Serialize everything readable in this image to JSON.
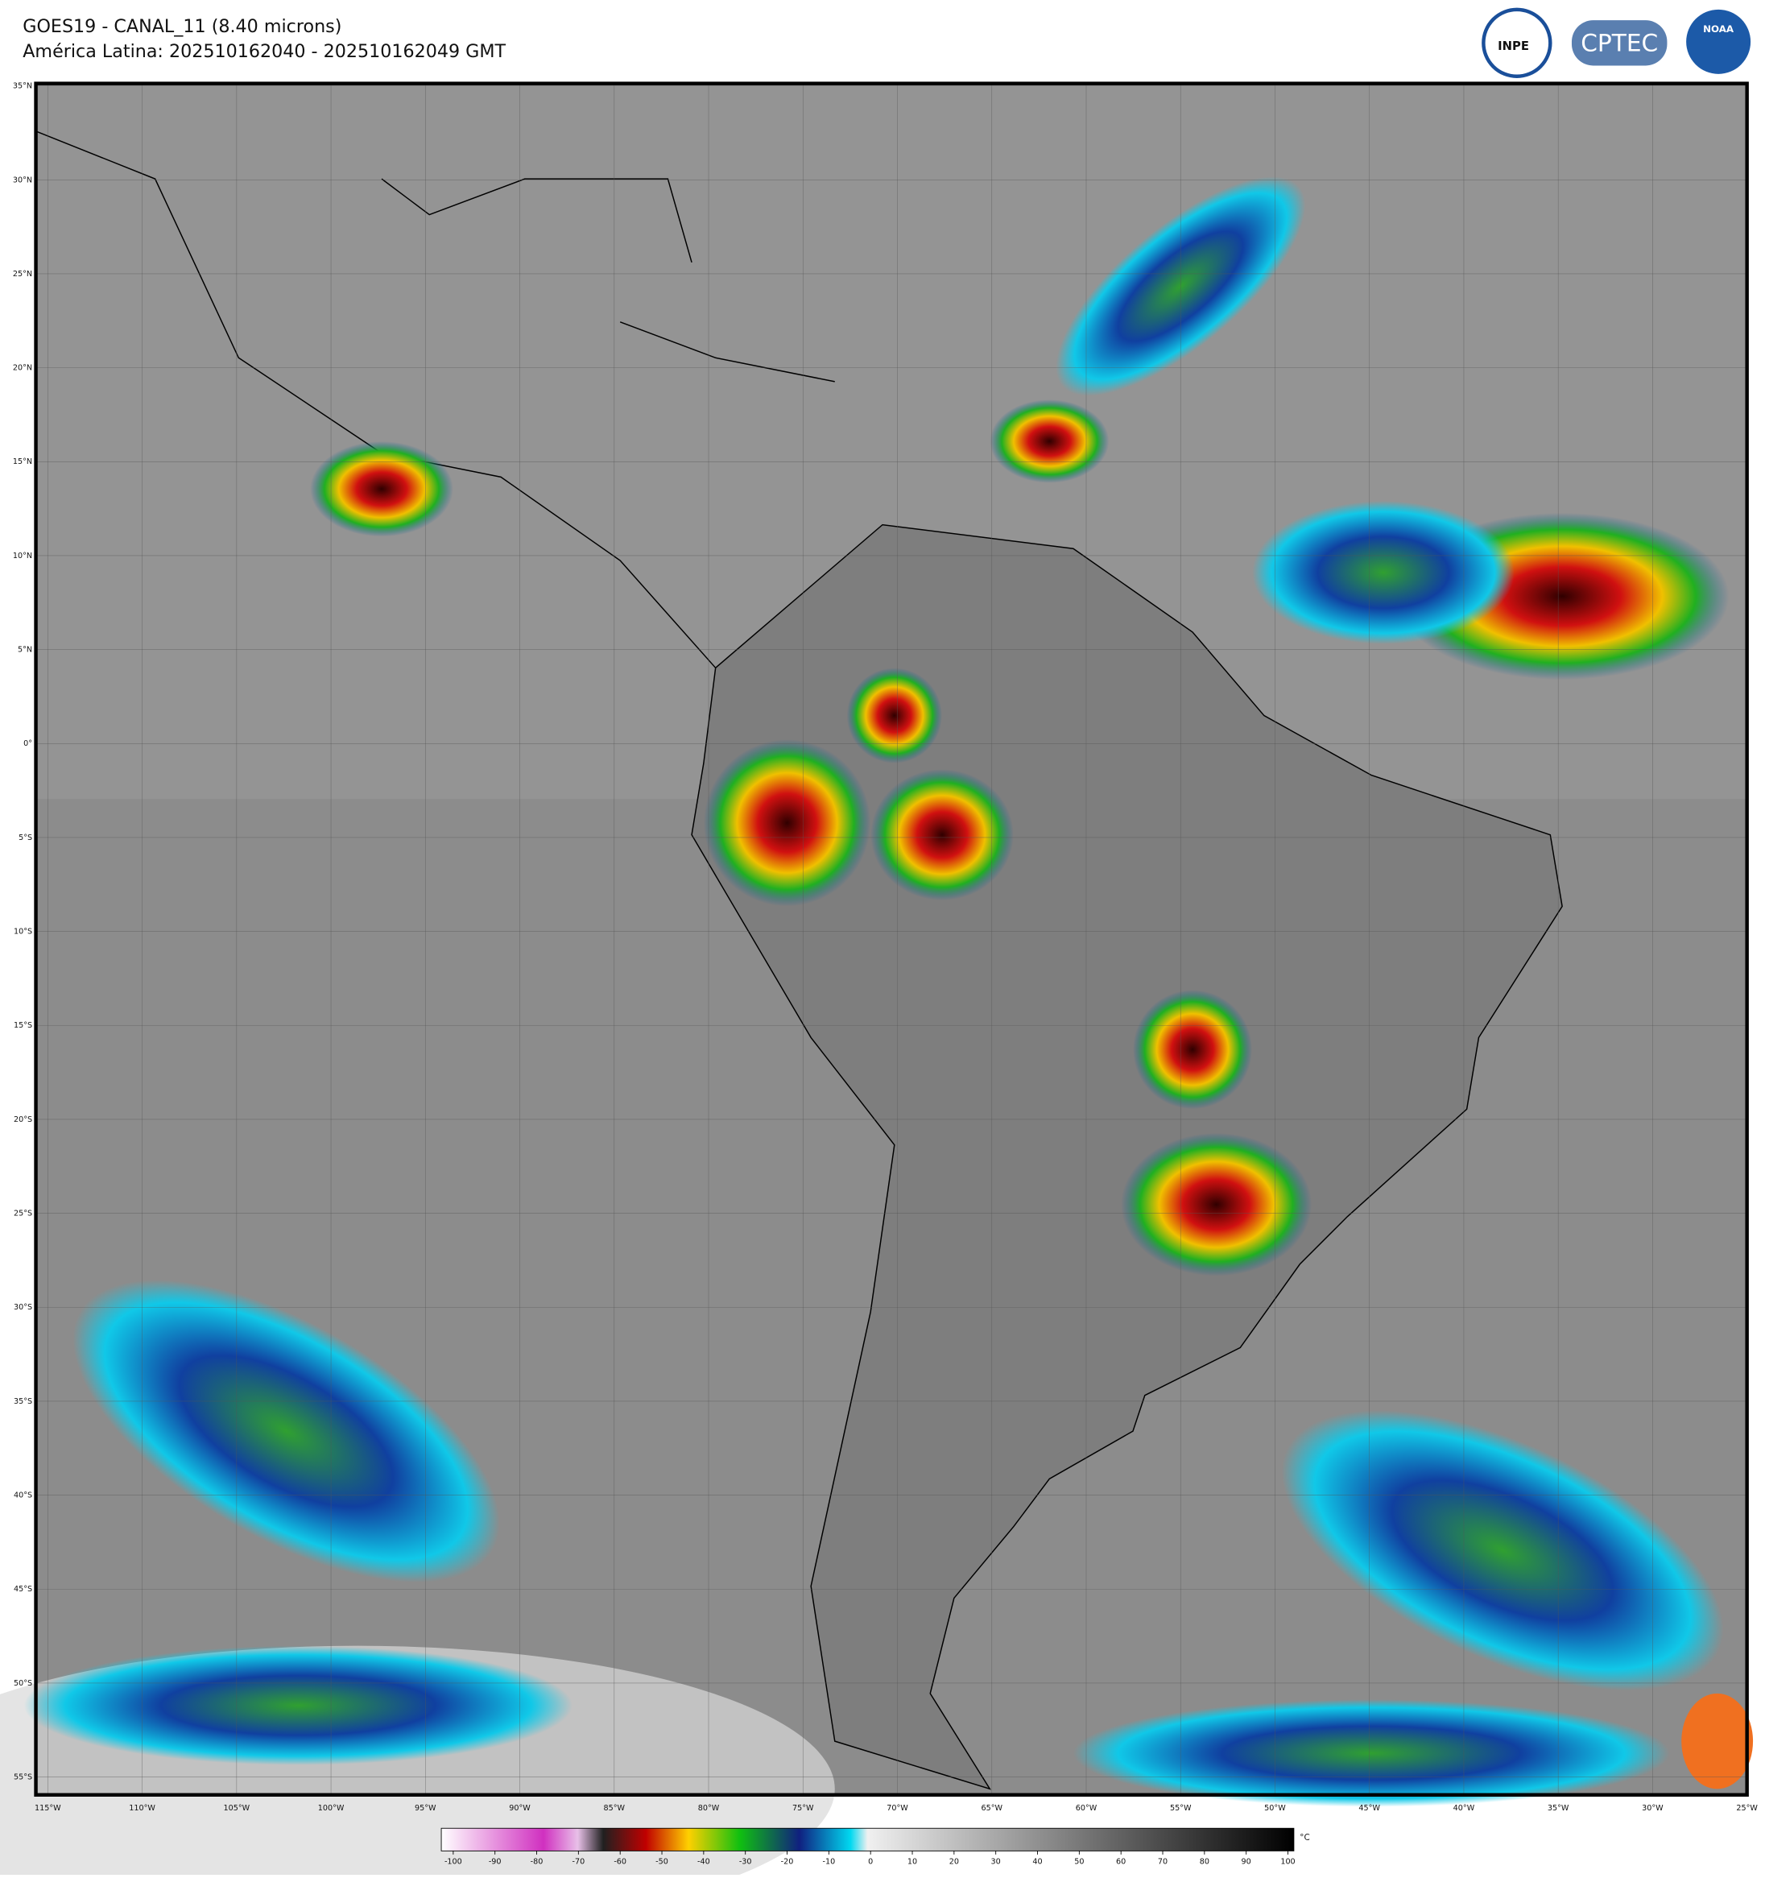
{
  "header": {
    "title": "GOES19 - CANAL_11 (8.40 microns)",
    "subtitle": "América Latina: 202510162040 - 202510162049 GMT",
    "logos": [
      "INPE",
      "CPTEC",
      "NOAA"
    ]
  },
  "map": {
    "lat_labels": [
      "35°N",
      "30°N",
      "25°N",
      "20°N",
      "15°N",
      "10°N",
      "5°N",
      "0°",
      "5°S",
      "10°S",
      "15°S",
      "20°S",
      "25°S",
      "30°S",
      "35°S",
      "40°S",
      "45°S",
      "50°S",
      "55°S"
    ],
    "lon_labels": [
      "115°W",
      "110°W",
      "105°W",
      "100°W",
      "95°W",
      "90°W",
      "85°W",
      "80°W",
      "75°W",
      "70°W",
      "65°W",
      "60°W",
      "55°W",
      "50°W",
      "45°W",
      "40°W",
      "35°W",
      "30°W",
      "25°W"
    ]
  },
  "colorbar": {
    "unit": "°C",
    "ticks": [
      -100,
      -90,
      -80,
      -70,
      -60,
      -50,
      -40,
      -30,
      -20,
      -10,
      0,
      10,
      20,
      30,
      40,
      50,
      60,
      70,
      80,
      90,
      100
    ]
  }
}
